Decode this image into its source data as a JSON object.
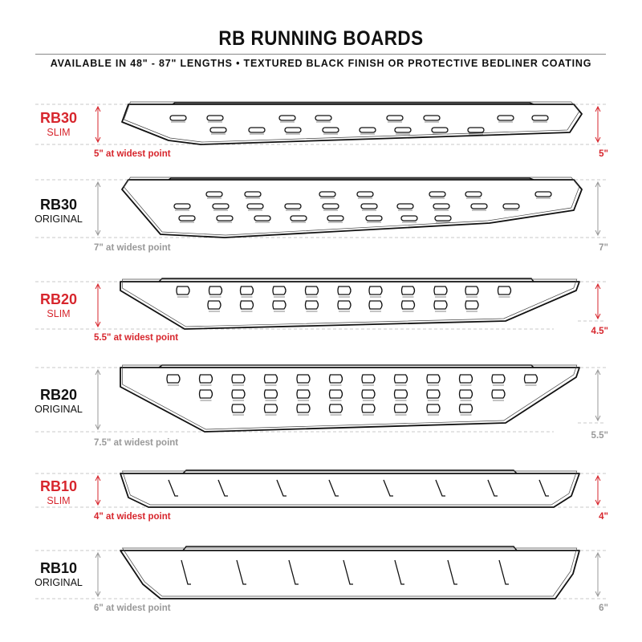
{
  "title": "RB RUNNING BOARDS",
  "subtitle": "AVAILABLE IN 48\" - 87\" LENGTHS   •  TEXTURED BLACK FINISH OR PROTECTIVE BEDLINER COATING",
  "colors": {
    "slim": "#d7262d",
    "original": "#111111",
    "original_dim": "#999999"
  },
  "boards": [
    {
      "name": "RB30",
      "variant": "SLIM",
      "widest": "5\" at widest point",
      "end": "5\"",
      "style": "slim"
    },
    {
      "name": "RB30",
      "variant": "ORIGINAL",
      "widest": "7\" at widest point",
      "end": "7\"",
      "style": "original"
    },
    {
      "name": "RB20",
      "variant": "SLIM",
      "widest": "5.5\" at widest point",
      "end": "4.5\"",
      "style": "slim"
    },
    {
      "name": "RB20",
      "variant": "ORIGINAL",
      "widest": "7.5\" at widest point",
      "end": "5.5\"",
      "style": "original"
    },
    {
      "name": "RB10",
      "variant": "SLIM",
      "widest": "4\" at widest point",
      "end": "4\"",
      "style": "slim"
    },
    {
      "name": "RB10",
      "variant": "ORIGINAL",
      "widest": "6\" at widest point",
      "end": "6\"",
      "style": "original"
    }
  ]
}
